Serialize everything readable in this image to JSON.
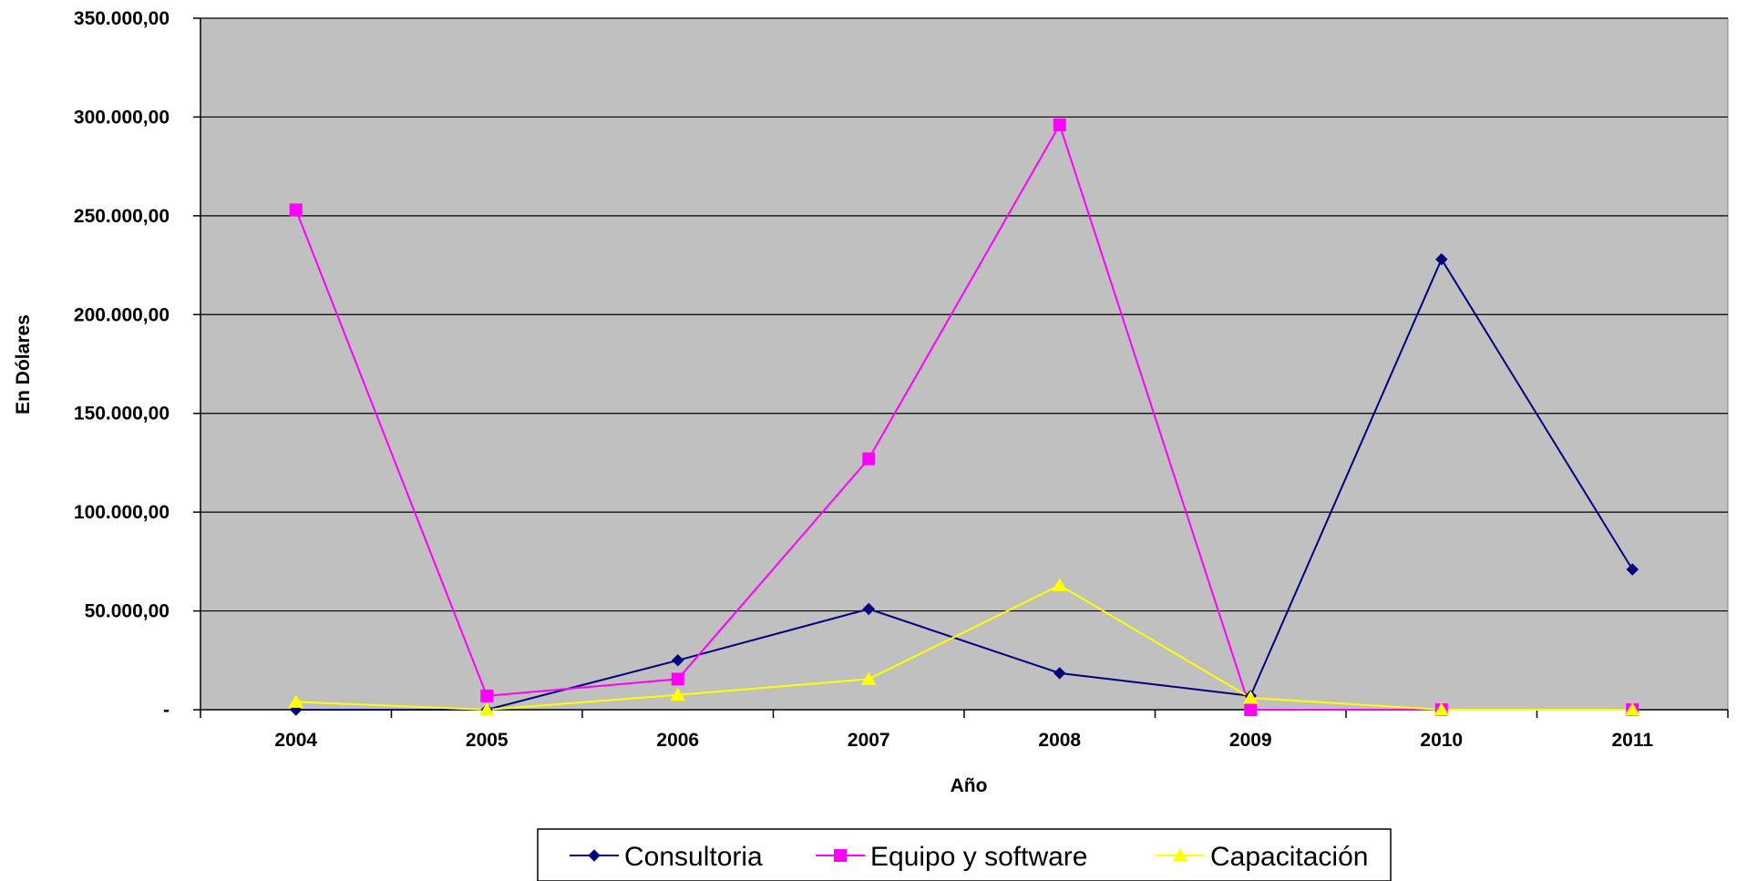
{
  "chart_data": {
    "type": "line",
    "xlabel": "Año",
    "ylabel": "En Dólares",
    "categories": [
      "2004",
      "2005",
      "2006",
      "2007",
      "2008",
      "2009",
      "2010",
      "2011"
    ],
    "ylim": [
      0,
      350000
    ],
    "yticks": [
      0,
      50000,
      100000,
      150000,
      200000,
      250000,
      300000,
      350000
    ],
    "ytick_labels": [
      "-",
      "50.000,00",
      "100.000,00",
      "150.000,00",
      "200.000,00",
      "250.000,00",
      "300.000,00",
      "350.000,00"
    ],
    "grid": true,
    "legend_position": "bottom",
    "plot_background": "#c0c0c0",
    "series": [
      {
        "name": "Consultoria",
        "color": "#000080",
        "marker": "diamond",
        "values": [
          0,
          0,
          25000,
          51000,
          18500,
          7000,
          228000,
          71000
        ]
      },
      {
        "name": "Equipo y software",
        "color": "#ff00ff",
        "marker": "square",
        "values": [
          253000,
          7000,
          15500,
          127000,
          296000,
          0,
          0,
          0
        ]
      },
      {
        "name": "Capacitación",
        "color": "#ffff00",
        "marker": "triangle",
        "values": [
          4000,
          0,
          7500,
          15500,
          63000,
          6000,
          0,
          0
        ]
      }
    ]
  }
}
